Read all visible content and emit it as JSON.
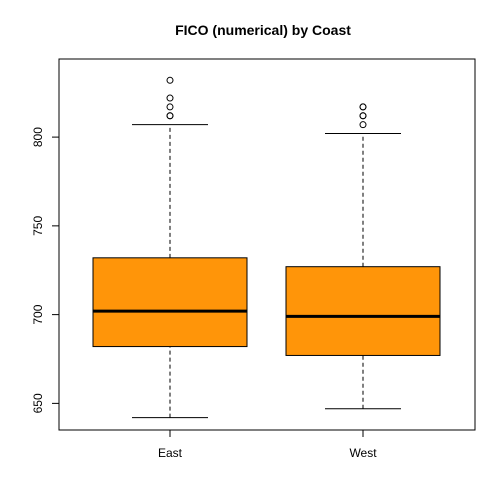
{
  "chart_data": {
    "type": "boxplot",
    "title": "FICO (numerical) by Coast",
    "xlabel": "",
    "ylabel": "",
    "categories": [
      "East",
      "West"
    ],
    "y_ticks": [
      650,
      700,
      750,
      800
    ],
    "ylim": [
      635,
      844
    ],
    "box_color": "#ff9509",
    "boxes": [
      {
        "category": "East",
        "whisker_low": 642,
        "q1": 682,
        "median": 702,
        "q3": 732,
        "whisker_high": 807,
        "outliers": [
          812,
          812,
          817,
          822,
          832
        ]
      },
      {
        "category": "West",
        "whisker_low": 647,
        "q1": 677,
        "median": 699,
        "q3": 727,
        "whisker_high": 802,
        "outliers": [
          807,
          812,
          812,
          817,
          817
        ]
      }
    ]
  }
}
